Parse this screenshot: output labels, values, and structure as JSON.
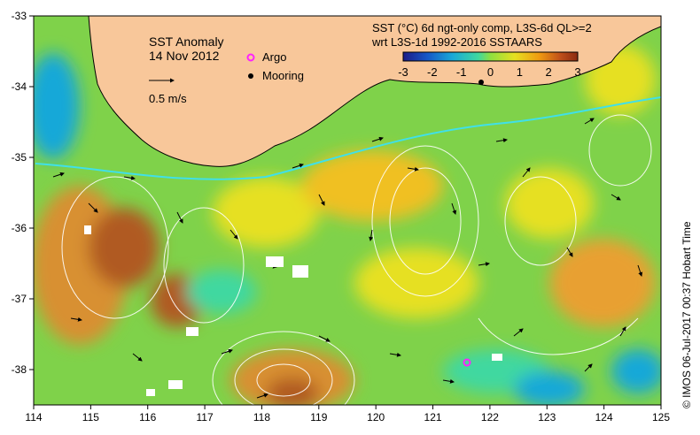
{
  "map": {
    "title_line1": "SST Anomaly",
    "title_line2": "14 Nov 2012",
    "product_line1": "SST (°C) 6d ngt-only comp, L3S-6d QL>=2",
    "product_line2": "wrt L3S-1d 1992-2016 SSTAARS",
    "vector_scale_label": "0.5 m/s",
    "legend": [
      {
        "label": "Argo",
        "color": "#ff22ff"
      },
      {
        "label": "Mooring",
        "color": "#000000"
      }
    ],
    "credit": "© IMOS 06-Jul-2017 00:37 Hobart Time",
    "colorbar": {
      "ticks": [
        "-3",
        "-2",
        "-1",
        "0",
        "1",
        "2",
        "3"
      ],
      "colors": [
        "#1b1b86",
        "#1658c8",
        "#19a8d8",
        "#3fd8a0",
        "#8ee040",
        "#e6e020",
        "#f09a10",
        "#c0501a",
        "#8a2a10"
      ]
    },
    "colors": {
      "land": "#f8c79a",
      "ocean_base": "#7fd24a",
      "contour": "#ffffff",
      "vector": "#000000",
      "cyan_boundary": "#40e0e8"
    }
  },
  "axes": {
    "x_ticks": [
      "114",
      "115",
      "116",
      "117",
      "118",
      "119",
      "120",
      "121",
      "122",
      "123",
      "124",
      "125"
    ],
    "y_ticks": [
      "-33",
      "-34",
      "-35",
      "-36",
      "-37",
      "-38"
    ],
    "lon_range": [
      114,
      125
    ],
    "lat_range": [
      -38.5,
      -33
    ]
  },
  "markers": {
    "argo_position": {
      "lon": 121.6,
      "lat": -37.9
    },
    "mooring_position": {
      "lon": 121.8,
      "lat": -33.95
    }
  }
}
